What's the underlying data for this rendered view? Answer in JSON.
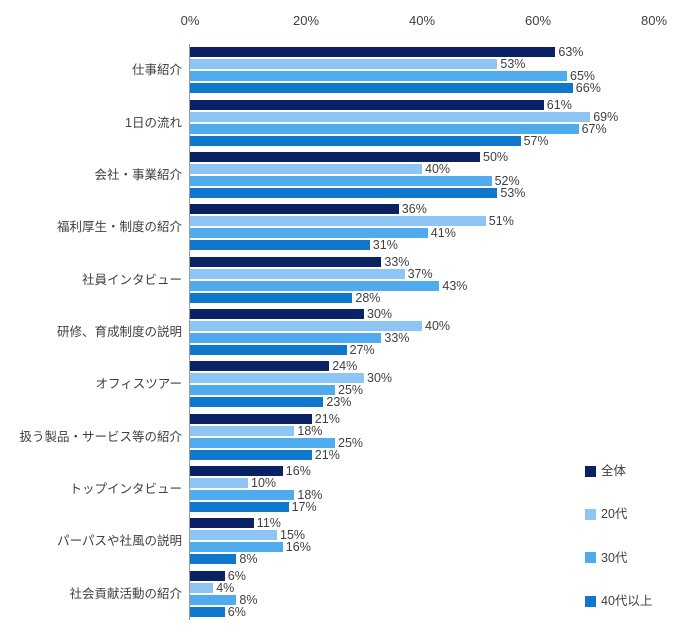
{
  "chart_data": {
    "type": "bar",
    "orientation": "horizontal",
    "title": "",
    "categories": [
      "仕事紹介",
      "1日の流れ",
      "会社・事業紹介",
      "福利厚生・制度の紹介",
      "社員インタビュー",
      "研修、育成制度の説明",
      "オフィスツアー",
      "扱う製品・サービス等の紹介",
      "トップインタビュー",
      "パーパスや社風の説明",
      "社会貢献活動の紹介"
    ],
    "series": [
      {
        "name": "全体",
        "color": "#0A2164",
        "values": [
          63,
          61,
          50,
          36,
          33,
          30,
          24,
          21,
          16,
          11,
          6
        ]
      },
      {
        "name": "20代",
        "color": "#8DC6F4",
        "values": [
          53,
          69,
          40,
          51,
          37,
          40,
          30,
          18,
          10,
          15,
          4
        ]
      },
      {
        "name": "30代",
        "color": "#4FABEE",
        "values": [
          65,
          67,
          52,
          41,
          43,
          33,
          25,
          25,
          18,
          16,
          8
        ]
      },
      {
        "name": "40代以上",
        "color": "#0F77CC",
        "values": [
          66,
          57,
          53,
          31,
          28,
          27,
          23,
          21,
          17,
          8,
          6
        ]
      }
    ],
    "x_ticks": [
      "0%",
      "20%",
      "40%",
      "60%",
      "80%"
    ],
    "xlim": [
      0,
      80
    ],
    "value_suffix": "%",
    "data_labels": true,
    "grid": false,
    "legend_position": "bottom-right",
    "axis_line_color": "#9B9B9B",
    "text_color": "#404040",
    "background_color": "#FFFFFF"
  }
}
